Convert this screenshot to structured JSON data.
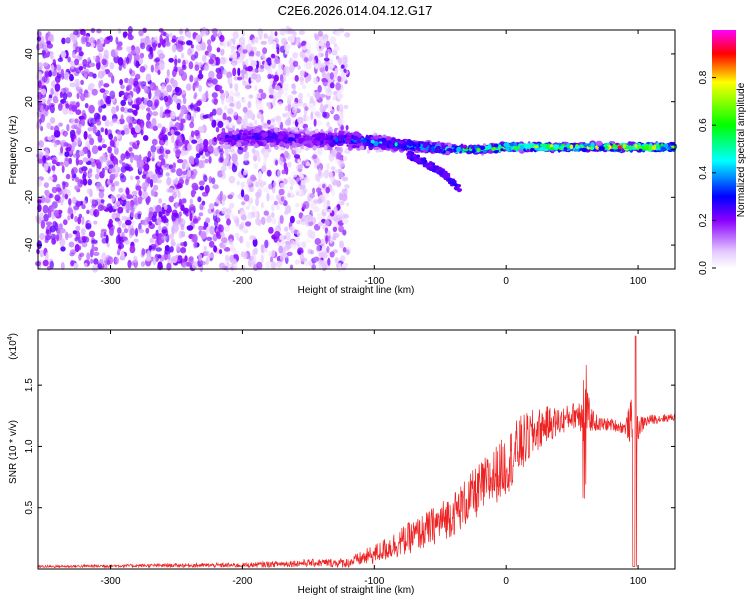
{
  "figure_title": "C2E6.2026.014.04.12.G17",
  "chart_data": [
    {
      "type": "heatmap",
      "title": "C2E6.2026.014.04.12.G17",
      "xlabel": "Height of straight line (km)",
      "ylabel": "Frequency (Hz)",
      "xlim": [
        -355,
        128
      ],
      "ylim": [
        -50,
        50
      ],
      "xticks": [
        -300,
        -200,
        -100,
        0,
        100
      ],
      "xtick_labels": [
        "-300",
        "-200",
        "-100",
        "0",
        "100"
      ],
      "yticks": [
        -40,
        -20,
        0,
        20,
        40
      ],
      "ytick_labels": [
        "-40",
        "-20",
        "0",
        "20",
        "40"
      ],
      "colorbar": {
        "label": "Normalized spectral amplitude",
        "range": [
          0,
          1
        ],
        "ticks": [
          0.0,
          0.2,
          0.4,
          0.6,
          0.8
        ],
        "tick_labels": [
          "0.0",
          "0.2",
          "0.4",
          "0.6",
          "0.8"
        ],
        "colormap": [
          "#ffffff",
          "#8a00ff",
          "#0000ff",
          "#00ffff",
          "#00ff00",
          "#ffff00",
          "#ff0000",
          "#ff00ff"
        ]
      },
      "description_series": {
        "noise_region_x": [
          -355,
          -120
        ],
        "noise_region_y": [
          -50,
          50
        ],
        "ridge": {
          "x": [
            -215,
            -180,
            -150,
            -120,
            -100,
            -80,
            -60,
            -40,
            -20,
            0,
            20,
            40,
            60,
            80,
            100,
            128
          ],
          "center_freq": [
            5,
            5,
            4,
            4,
            3,
            2,
            1,
            0,
            0,
            1,
            1,
            1,
            1,
            1,
            1,
            1
          ],
          "width": [
            6,
            6,
            5,
            5,
            4,
            3,
            3,
            2,
            2,
            2,
            2,
            2,
            2,
            2,
            2,
            2
          ],
          "peak_amplitude": [
            0.3,
            0.35,
            0.3,
            0.4,
            0.45,
            0.5,
            0.55,
            0.6,
            0.7,
            0.75,
            0.8,
            0.8,
            0.7,
            0.9,
            0.9,
            0.7
          ]
        },
        "branch": {
          "x": [
            -75,
            -60,
            -45,
            -35
          ],
          "freq": [
            -2,
            -6,
            -11,
            -17
          ]
        }
      }
    },
    {
      "type": "line",
      "xlabel": "Height of straight line (km)",
      "ylabel": "SNR (10 * v/v)",
      "y_exponent_label": "(x10^4)",
      "xlim": [
        -355,
        128
      ],
      "ylim": [
        0,
        1.95
      ],
      "xticks": [
        -300,
        -200,
        -100,
        0,
        100
      ],
      "xtick_labels": [
        "-300",
        "-200",
        "-100",
        "0",
        "100"
      ],
      "yticks": [
        0.5,
        1.0,
        1.5
      ],
      "ytick_labels": [
        "0.5",
        "1.0",
        "1.5"
      ],
      "series": [
        {
          "name": "SNR",
          "color": "#ee2222",
          "envelope_x": [
            -355,
            -250,
            -200,
            -150,
            -120,
            -100,
            -80,
            -60,
            -40,
            -20,
            0,
            10,
            20,
            30,
            40,
            50,
            60,
            65,
            70,
            80,
            90,
            95,
            98,
            100,
            105,
            110,
            128
          ],
          "envelope_center": [
            0.02,
            0.03,
            0.03,
            0.05,
            0.05,
            0.12,
            0.22,
            0.32,
            0.45,
            0.65,
            0.85,
            1.0,
            1.1,
            1.18,
            1.2,
            1.25,
            1.3,
            1.22,
            1.18,
            1.18,
            1.15,
            1.2,
            1.0,
            1.15,
            1.2,
            1.22,
            1.24
          ],
          "envelope_spread": [
            0.01,
            0.015,
            0.02,
            0.03,
            0.04,
            0.08,
            0.12,
            0.15,
            0.18,
            0.22,
            0.25,
            0.25,
            0.2,
            0.15,
            0.12,
            0.1,
            0.2,
            0.1,
            0.06,
            0.05,
            0.05,
            0.2,
            0.3,
            0.1,
            0.05,
            0.04,
            0.03
          ]
        }
      ]
    }
  ]
}
